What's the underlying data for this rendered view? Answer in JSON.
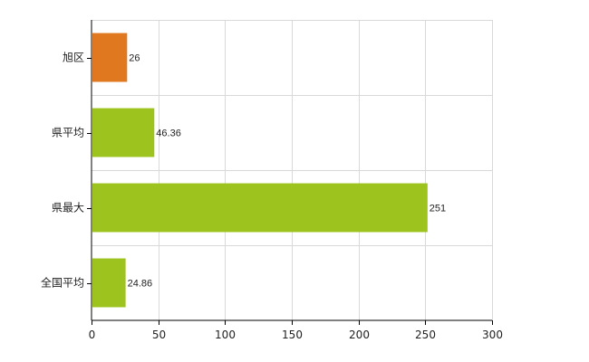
{
  "colors": {
    "highlight_bar": "#E07820",
    "bar": "#9DC41E",
    "grid": "#D9D9D9",
    "axis": "#000000"
  },
  "chart_data": {
    "type": "bar",
    "orientation": "horizontal",
    "title": "",
    "xlabel": "",
    "ylabel": "",
    "categories": [
      "旭区",
      "県平均",
      "県最大",
      "全国平均"
    ],
    "values": [
      26,
      46.36,
      251,
      24.86
    ],
    "value_labels": [
      "26",
      "46.36",
      "251",
      "24.86"
    ],
    "bar_colors": [
      "#E07820",
      "#9DC41E",
      "#9DC41E",
      "#9DC41E"
    ],
    "xlim": [
      0,
      300
    ],
    "xticks": [
      0,
      50,
      100,
      150,
      200,
      250,
      300
    ],
    "grid": true,
    "legend": "none"
  }
}
